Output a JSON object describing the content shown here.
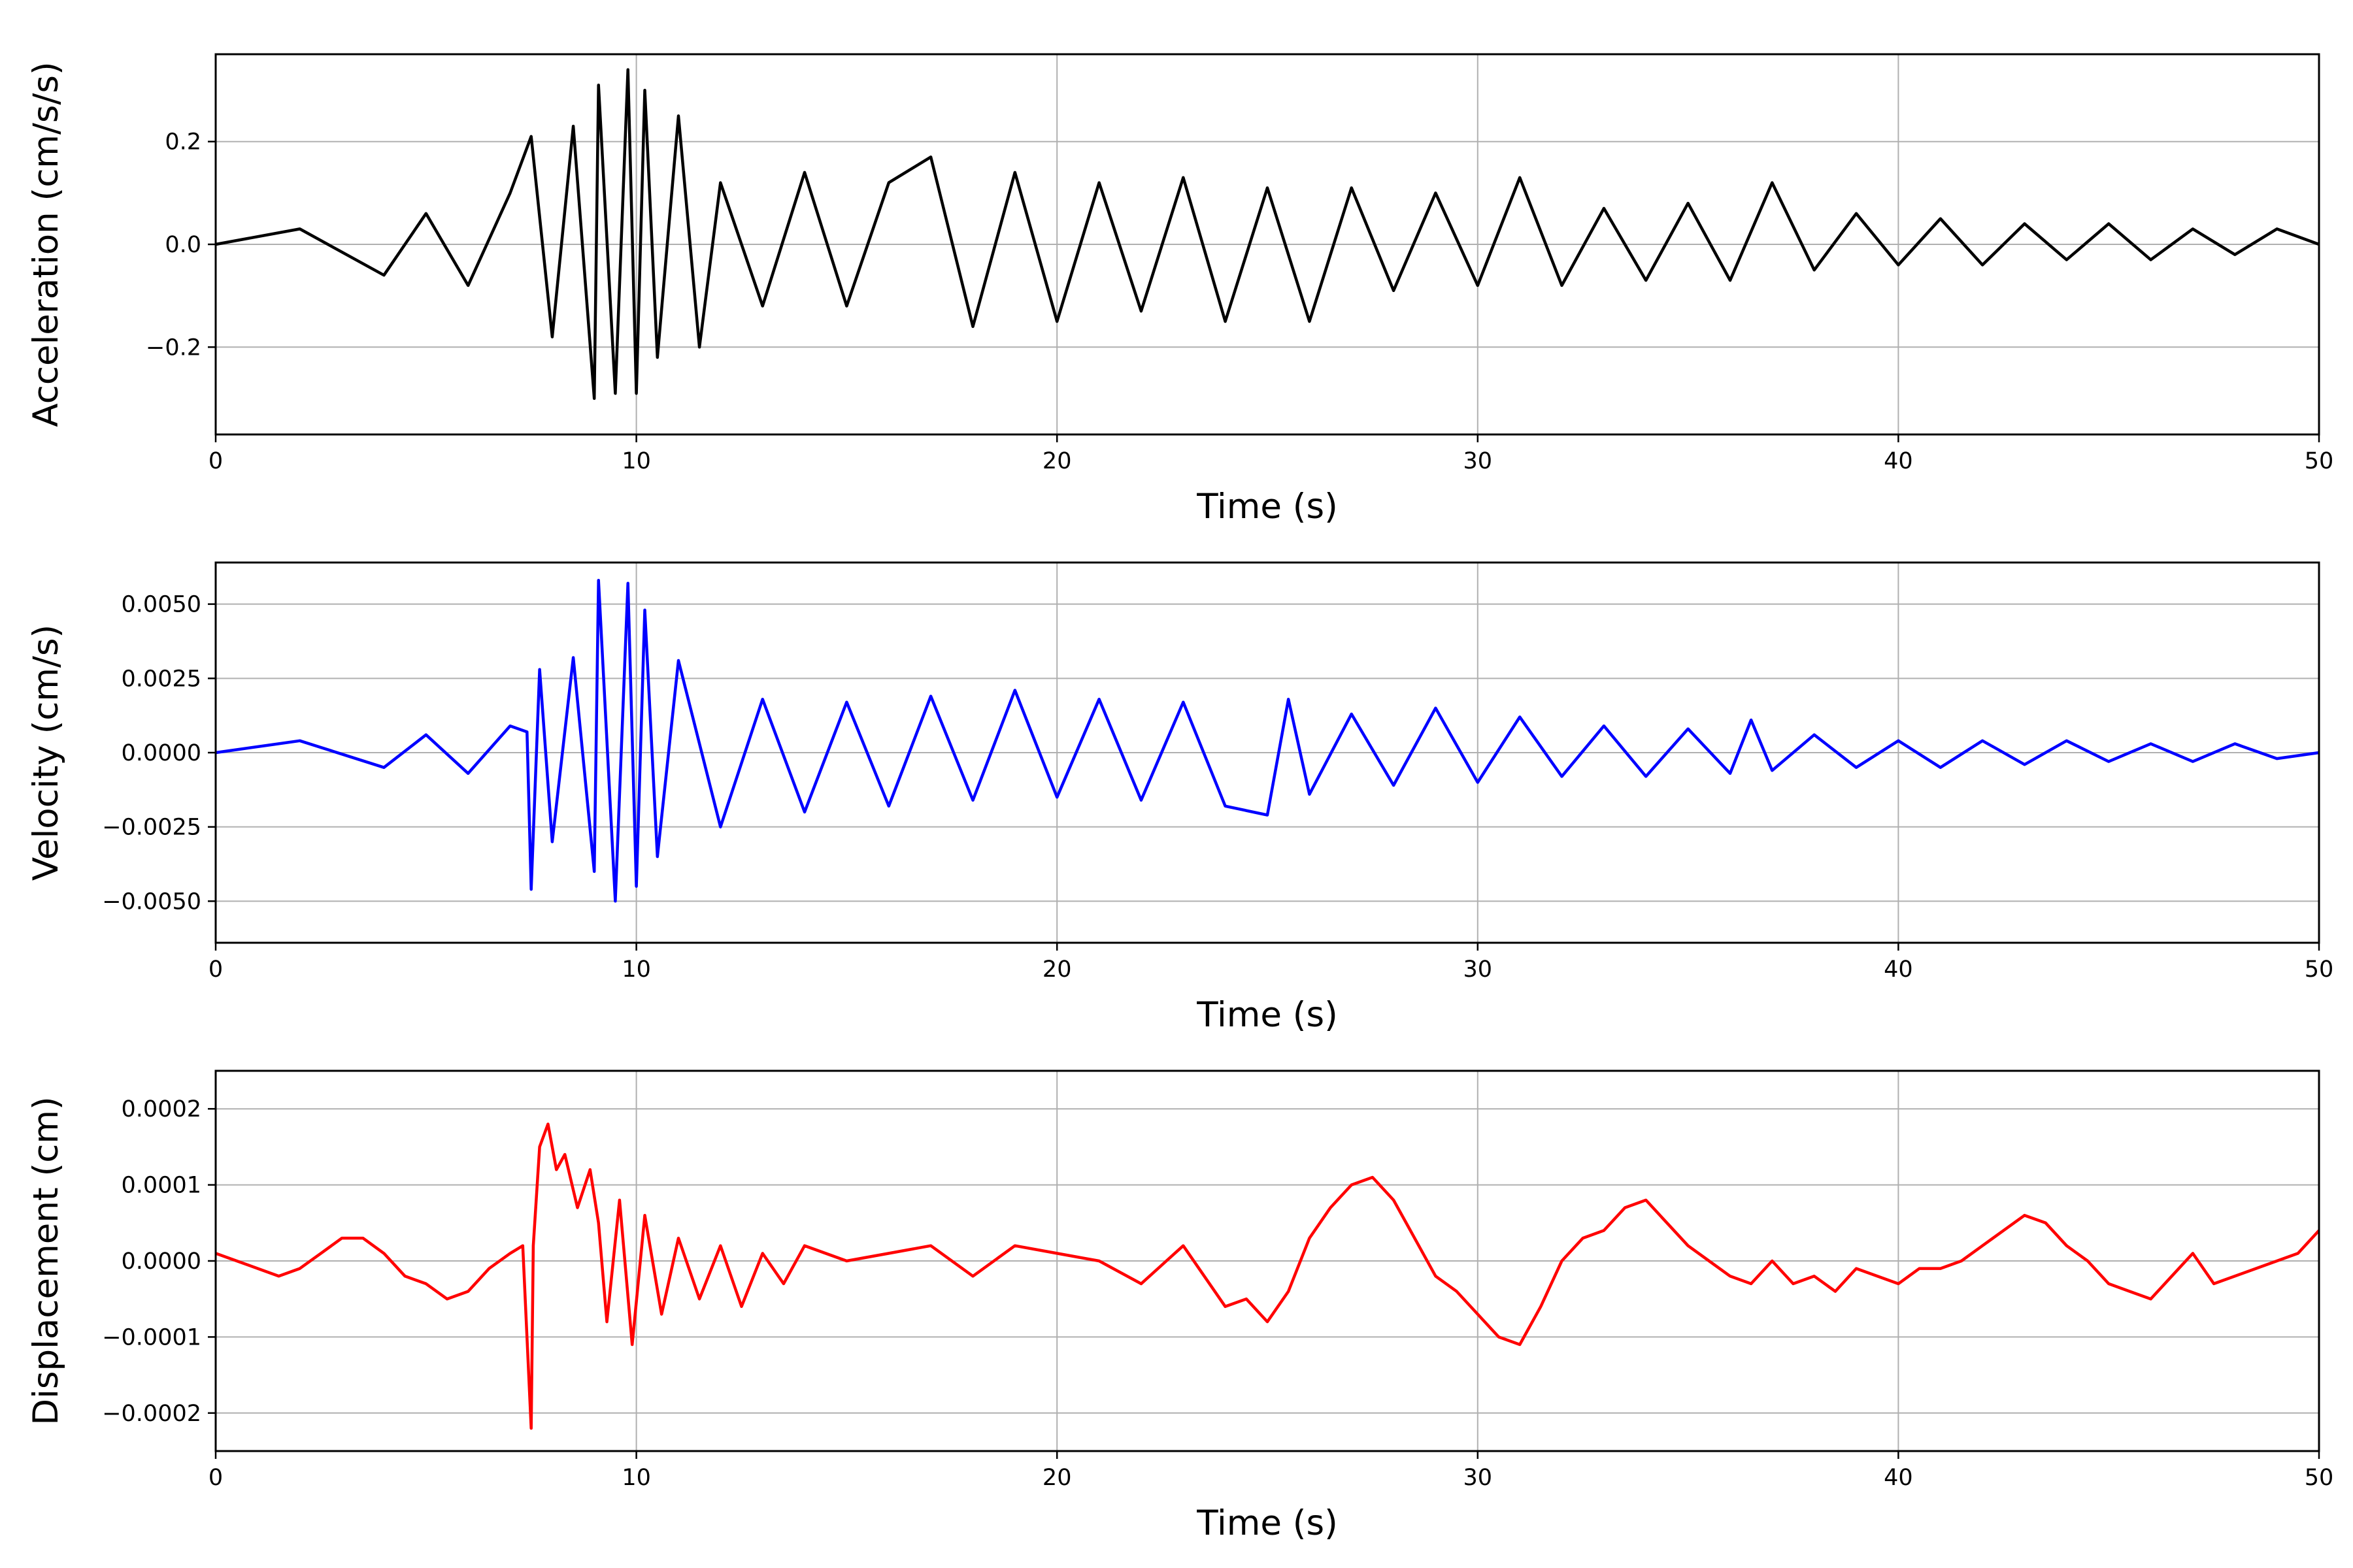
{
  "chart_data": [
    {
      "type": "line",
      "xlabel": "Time (s)",
      "ylabel": "Acceleration (cm/s/s)",
      "xlim": [
        0,
        50
      ],
      "ylim": [
        -0.37,
        0.37
      ],
      "xticks": [
        0,
        10,
        20,
        30,
        40,
        50
      ],
      "xtick_labels": [
        "0",
        "10",
        "20",
        "30",
        "40",
        "50"
      ],
      "yticks": [
        0.2,
        0.0,
        -0.2
      ],
      "ytick_labels": [
        "0.2",
        "0.0",
        "−0.2"
      ],
      "grid": true,
      "color": "#000000",
      "series": [
        {
          "x": [
            0,
            2,
            4,
            5,
            6,
            7,
            7.5,
            8,
            8.5,
            9,
            9.1,
            9.5,
            9.8,
            10,
            10.2,
            10.5,
            11,
            11.5,
            12,
            13,
            14,
            15,
            16,
            17,
            18,
            19,
            20,
            21,
            22,
            23,
            24,
            25,
            26,
            27,
            28,
            29,
            30,
            31,
            32,
            33,
            34,
            35,
            36,
            37,
            38,
            39,
            40,
            41,
            42,
            43,
            44,
            45,
            46,
            47,
            48,
            49,
            50
          ],
          "y": [
            0.0,
            0.03,
            -0.06,
            0.06,
            -0.08,
            0.1,
            0.21,
            -0.18,
            0.23,
            -0.3,
            0.31,
            -0.29,
            0.34,
            -0.29,
            0.3,
            -0.22,
            0.25,
            -0.2,
            0.12,
            -0.12,
            0.14,
            -0.12,
            0.12,
            0.17,
            -0.16,
            0.14,
            -0.15,
            0.12,
            -0.13,
            0.13,
            -0.15,
            0.11,
            -0.15,
            0.11,
            -0.09,
            0.1,
            -0.08,
            0.13,
            -0.08,
            0.07,
            -0.07,
            0.08,
            -0.07,
            0.12,
            -0.05,
            0.06,
            -0.04,
            0.05,
            -0.04,
            0.04,
            -0.03,
            0.04,
            -0.03,
            0.03,
            -0.02,
            0.03,
            0.0
          ]
        }
      ]
    },
    {
      "type": "line",
      "xlabel": "Time (s)",
      "ylabel": "Velocity (cm/s)",
      "xlim": [
        0,
        50
      ],
      "ylim": [
        -0.0064,
        0.0064
      ],
      "xticks": [
        0,
        10,
        20,
        30,
        40,
        50
      ],
      "xtick_labels": [
        "0",
        "10",
        "20",
        "30",
        "40",
        "50"
      ],
      "yticks": [
        0.005,
        0.0025,
        0.0,
        -0.0025,
        -0.005
      ],
      "ytick_labels": [
        "0.0050",
        "0.0025",
        "0.0000",
        "−0.0025",
        "−0.0050"
      ],
      "grid": true,
      "color": "#0000ff",
      "series": [
        {
          "x": [
            0,
            2,
            4,
            5,
            6,
            7,
            7.4,
            7.5,
            7.7,
            8,
            8.5,
            9,
            9.1,
            9.5,
            9.8,
            10,
            10.2,
            10.5,
            11,
            12,
            13,
            14,
            15,
            16,
            17,
            18,
            19,
            20,
            21,
            22,
            23,
            24,
            25,
            25.5,
            26,
            27,
            28,
            29,
            30,
            31,
            32,
            33,
            34,
            35,
            36,
            36.5,
            37,
            38,
            39,
            40,
            41,
            42,
            43,
            44,
            45,
            46,
            47,
            48,
            49,
            50
          ],
          "y": [
            0.0,
            0.0004,
            -0.0005,
            0.0006,
            -0.0007,
            0.0009,
            0.0007,
            -0.0046,
            0.0028,
            -0.003,
            0.0032,
            -0.004,
            0.0058,
            -0.005,
            0.0057,
            -0.0045,
            0.0048,
            -0.0035,
            0.0031,
            -0.0025,
            0.0018,
            -0.002,
            0.0017,
            -0.0018,
            0.0019,
            -0.0016,
            0.0021,
            -0.0015,
            0.0018,
            -0.0016,
            0.0017,
            -0.0018,
            -0.0021,
            0.0018,
            -0.0014,
            0.0013,
            -0.0011,
            0.0015,
            -0.001,
            0.0012,
            -0.0008,
            0.0009,
            -0.0008,
            0.0008,
            -0.0007,
            0.0011,
            -0.0006,
            0.0006,
            -0.0005,
            0.0004,
            -0.0005,
            0.0004,
            -0.0004,
            0.0004,
            -0.0003,
            0.0003,
            -0.0003,
            0.0003,
            -0.0002,
            0.0
          ]
        }
      ]
    },
    {
      "type": "line",
      "xlabel": "Time (s)",
      "ylabel": "Displacement (cm)",
      "xlim": [
        0,
        50
      ],
      "ylim": [
        -0.00025,
        0.00025
      ],
      "xticks": [
        0,
        10,
        20,
        30,
        40,
        50
      ],
      "xtick_labels": [
        "0",
        "10",
        "20",
        "30",
        "40",
        "50"
      ],
      "yticks": [
        0.0002,
        0.0001,
        0.0,
        -0.0001,
        -0.0002
      ],
      "ytick_labels": [
        "0.0002",
        "0.0001",
        "0.0000",
        "−0.0001",
        "−0.0002"
      ],
      "grid": true,
      "color": "#ff0000",
      "series": [
        {
          "x": [
            0,
            0.5,
            1,
            1.5,
            2,
            2.5,
            3,
            3.5,
            4,
            4.5,
            5,
            5.5,
            6,
            6.5,
            7,
            7.3,
            7.5,
            7.55,
            7.7,
            7.9,
            8.1,
            8.3,
            8.6,
            8.9,
            9.1,
            9.3,
            9.6,
            9.9,
            10.2,
            10.6,
            11,
            11.5,
            12,
            12.5,
            13,
            13.5,
            14,
            15,
            16,
            17,
            18,
            19,
            20,
            21,
            22,
            23,
            24,
            24.5,
            25,
            25.5,
            26,
            26.5,
            27,
            27.5,
            28,
            28.5,
            29,
            29.5,
            30,
            30.5,
            31,
            31.5,
            32,
            32.5,
            33,
            33.5,
            34,
            34.5,
            35,
            35.5,
            36,
            36.5,
            37,
            37.5,
            38,
            38.5,
            39,
            39.5,
            40,
            40.5,
            41,
            41.5,
            42,
            42.5,
            43,
            43.5,
            44,
            44.5,
            45,
            45.5,
            46,
            46.5,
            47,
            47.5,
            48,
            48.5,
            49,
            49.5,
            50
          ],
          "y": [
            1e-05,
            0.0,
            -1e-05,
            -2e-05,
            -1e-05,
            1e-05,
            3e-05,
            3e-05,
            1e-05,
            -2e-05,
            -3e-05,
            -5e-05,
            -4e-05,
            -1e-05,
            1e-05,
            2e-05,
            -0.00022,
            2e-05,
            0.00015,
            0.00018,
            0.00012,
            0.00014,
            7e-05,
            0.00012,
            5e-05,
            -8e-05,
            8e-05,
            -0.00011,
            6e-05,
            -7e-05,
            3e-05,
            -5e-05,
            2e-05,
            -6e-05,
            1e-05,
            -3e-05,
            2e-05,
            0.0,
            1e-05,
            2e-05,
            -2e-05,
            2e-05,
            1e-05,
            0.0,
            -3e-05,
            2e-05,
            -6e-05,
            -5e-05,
            -8e-05,
            -4e-05,
            3e-05,
            7e-05,
            0.0001,
            0.00011,
            8e-05,
            3e-05,
            -2e-05,
            -4e-05,
            -7e-05,
            -0.0001,
            -0.00011,
            -6e-05,
            0.0,
            3e-05,
            4e-05,
            7e-05,
            8e-05,
            5e-05,
            2e-05,
            0.0,
            -2e-05,
            -3e-05,
            0.0,
            -3e-05,
            -2e-05,
            -4e-05,
            -1e-05,
            -2e-05,
            -3e-05,
            -1e-05,
            -1e-05,
            0.0,
            2e-05,
            4e-05,
            6e-05,
            5e-05,
            2e-05,
            0.0,
            -3e-05,
            -4e-05,
            -5e-05,
            -2e-05,
            1e-05,
            -3e-05,
            -2e-05,
            -1e-05,
            0.0,
            1e-05,
            4e-05
          ]
        }
      ]
    }
  ]
}
